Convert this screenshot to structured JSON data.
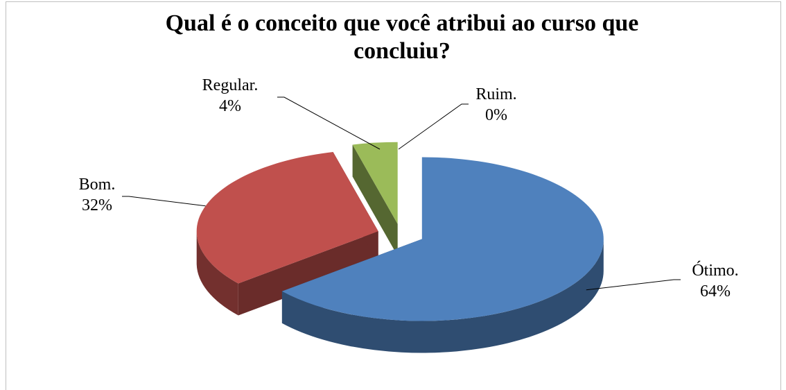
{
  "chart_data": {
    "type": "pie",
    "title": "Qual é o conceito que você atribui ao curso que concluiu?",
    "categories": [
      "Ótimo.",
      "Bom.",
      "Regular.",
      "Ruim."
    ],
    "values": [
      64,
      32,
      4,
      0
    ],
    "value_labels": [
      "64%",
      "32%",
      "4%",
      "0%"
    ],
    "colors": [
      "#4f81bd",
      "#c0504d",
      "#9bbb59",
      "#8064a2"
    ],
    "start_angle": 0,
    "direction": "clockwise",
    "three_d": true,
    "exploded": true
  }
}
